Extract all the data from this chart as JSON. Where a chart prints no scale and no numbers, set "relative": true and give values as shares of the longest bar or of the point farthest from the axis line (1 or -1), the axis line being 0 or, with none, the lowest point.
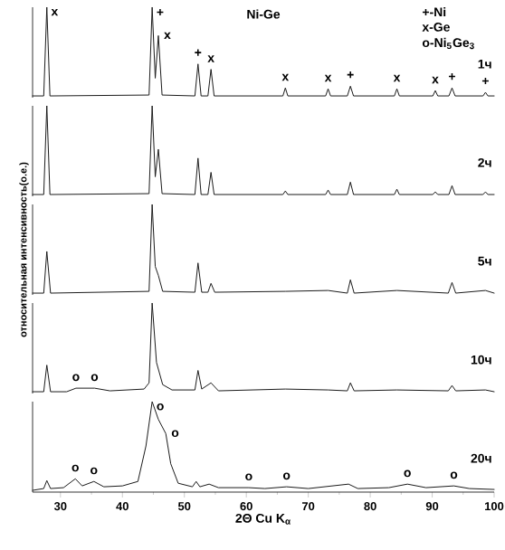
{
  "chart_data": [
    {
      "type": "line",
      "relative": true,
      "title": "Ni-Ge",
      "xlim": [
        25.5,
        100
      ],
      "tick_labels": false,
      "series": [
        {
          "name": "1ч",
          "color": "#1a1a1a",
          "x": [
            25.5,
            27.3,
            27.8,
            28.3,
            44.3,
            44.8,
            45.3,
            45.8,
            46.4,
            51.7,
            52.2,
            52.7,
            53.8,
            54.3,
            54.8,
            65.9,
            66.3,
            66.7,
            72.8,
            73.2,
            73.6,
            76.3,
            76.8,
            77.3,
            83.9,
            84.3,
            84.7,
            90.1,
            90.5,
            90.9,
            92.7,
            93.2,
            93.7,
            98.2,
            98.6,
            99.0,
            100
          ],
          "values": [
            0,
            0,
            1.0,
            0,
            0.01,
            1.0,
            0.2,
            0.68,
            0.01,
            0,
            0.36,
            0,
            0,
            0.3,
            0,
            0,
            0.09,
            0,
            0,
            0.08,
            0,
            0,
            0.11,
            0,
            0,
            0.08,
            0,
            0,
            0.06,
            0,
            0,
            0.09,
            0,
            0,
            0.04,
            0,
            0
          ]
        }
      ],
      "annotations": [
        "+-Ni",
        "x-Ge",
        "o-Ni$_{5}$Ge$_{3}$",
        {
          "text": "x",
          "x": 27.8,
          "y": 1.0
        },
        {
          "text": "+",
          "x": 44.8,
          "y": 1.0
        },
        {
          "text": "x",
          "x": 45.8,
          "y": 0.68
        },
        {
          "text": "+",
          "x": 52.2,
          "y": 0.36
        },
        {
          "text": "x",
          "x": 54.3,
          "y": 0.3
        },
        {
          "text": "x",
          "x": 66.3,
          "y": 0.09
        },
        {
          "text": "x",
          "x": 73.2,
          "y": 0.08
        },
        {
          "text": "+",
          "x": 76.8,
          "y": 0.11
        },
        {
          "text": "x",
          "x": 84.3,
          "y": 0.08
        },
        {
          "text": "x",
          "x": 90.5,
          "y": 0.06
        },
        {
          "text": "+",
          "x": 93.2,
          "y": 0.09
        },
        {
          "text": "+",
          "x": 98.6,
          "y": 0.04
        }
      ]
    },
    {
      "type": "line",
      "relative": true,
      "xlim": [
        25.5,
        100
      ],
      "tick_labels": false,
      "series": [
        {
          "name": "2ч",
          "color": "#1a1a1a",
          "x": [
            25.5,
            27.3,
            27.8,
            28.3,
            44.3,
            44.8,
            45.3,
            45.8,
            46.4,
            51.7,
            52.2,
            52.7,
            53.8,
            54.3,
            54.8,
            65.9,
            66.3,
            66.7,
            72.8,
            73.2,
            73.6,
            76.3,
            76.8,
            77.3,
            83.9,
            84.3,
            84.7,
            90.1,
            90.5,
            90.9,
            92.7,
            93.2,
            93.7,
            98.2,
            98.6,
            99.0,
            100
          ],
          "values": [
            0,
            0,
            1.0,
            0,
            0.01,
            1.0,
            0.2,
            0.51,
            0.01,
            0,
            0.41,
            0,
            0,
            0.25,
            0,
            0,
            0.04,
            0,
            0,
            0.05,
            0,
            0,
            0.14,
            0,
            0,
            0.06,
            0,
            0,
            0.03,
            0,
            0,
            0.1,
            0,
            0,
            0.03,
            0,
            0
          ]
        }
      ]
    },
    {
      "type": "line",
      "relative": true,
      "xlim": [
        25.5,
        100
      ],
      "tick_labels": false,
      "ylabel": "относительная интенсивность(о.е.)",
      "series": [
        {
          "name": "5ч",
          "color": "#1a1a1a",
          "x": [
            25.5,
            27.3,
            27.8,
            28.4,
            44.3,
            44.8,
            45.3,
            45.8,
            46.5,
            51.7,
            52.2,
            52.8,
            53.8,
            54.3,
            54.9,
            66.3,
            73.2,
            76.3,
            76.8,
            77.4,
            84.3,
            92.6,
            93.2,
            93.8,
            98.6,
            100
          ],
          "values": [
            0,
            0,
            0.47,
            0,
            0.02,
            1.0,
            0.3,
            0.2,
            0.02,
            0.01,
            0.34,
            0.01,
            0.01,
            0.11,
            0.01,
            0.02,
            0.03,
            0,
            0.15,
            0,
            0.03,
            0,
            0.12,
            0,
            0.03,
            0
          ]
        }
      ]
    },
    {
      "type": "line",
      "relative": true,
      "xlim": [
        25.5,
        100
      ],
      "tick_labels": false,
      "series": [
        {
          "name": "10ч",
          "color": "#1a1a1a",
          "x": [
            25.5,
            27.3,
            27.8,
            28.4,
            31,
            32.5,
            35.5,
            38,
            43.5,
            44.3,
            44.8,
            45.5,
            46.5,
            48,
            51.7,
            52.2,
            52.8,
            54.3,
            55.5,
            66.3,
            73.2,
            76.3,
            76.8,
            77.4,
            84.3,
            92.6,
            93.2,
            93.8,
            98.6,
            100
          ],
          "values": [
            0,
            0,
            0.3,
            0,
            0,
            0.04,
            0.04,
            0.01,
            0.03,
            0.1,
            1.0,
            0.33,
            0.08,
            0.02,
            0.02,
            0.24,
            0.03,
            0.1,
            0.01,
            0.03,
            0.02,
            0.01,
            0.1,
            0.01,
            0.02,
            0.01,
            0.07,
            0.01,
            0.02,
            0
          ]
        }
      ],
      "annotations": [
        {
          "text": "o",
          "x": 32.5,
          "y": 0.04
        },
        {
          "text": "o",
          "x": 35.5,
          "y": 0.04
        }
      ]
    },
    {
      "type": "line",
      "relative": true,
      "xlim": [
        25.5,
        100
      ],
      "xticks": [
        30,
        40,
        50,
        60,
        70,
        80,
        90,
        100
      ],
      "tick_labels": "x",
      "xlabel": "2Θ Cu K$_{α}$",
      "series": [
        {
          "name": "20ч",
          "color": "#1a1a1a",
          "x": [
            25.5,
            27.3,
            27.8,
            28.4,
            30.5,
            32.4,
            33.5,
            35.4,
            37,
            40,
            42.5,
            43.8,
            44.8,
            45.8,
            47,
            47.8,
            49,
            51.3,
            51.9,
            52.5,
            54,
            55.5,
            60.4,
            63,
            66.5,
            70,
            76.5,
            78,
            83,
            86,
            89,
            93.5,
            96,
            100
          ],
          "values": [
            0,
            0.02,
            0.11,
            0.02,
            0.03,
            0.13,
            0.05,
            0.1,
            0.04,
            0.05,
            0.1,
            0.5,
            1.0,
            0.8,
            0.64,
            0.3,
            0.08,
            0.04,
            0.1,
            0.04,
            0.07,
            0.03,
            0.03,
            0.02,
            0.04,
            0.02,
            0.07,
            0.02,
            0.03,
            0.07,
            0.03,
            0.05,
            0.02,
            0.01
          ]
        }
      ],
      "annotations": [
        {
          "text": "o",
          "x": 32.4,
          "y": 0.13
        },
        {
          "text": "o",
          "x": 35.4,
          "y": 0.1
        },
        {
          "text": "o",
          "x": 44.8,
          "y": 1.0
        },
        {
          "text": "o",
          "x": 47,
          "y": 0.64
        },
        {
          "text": "o",
          "x": 60.4,
          "y": 0.03
        },
        {
          "text": "o",
          "x": 66.5,
          "y": 0.04
        },
        {
          "text": "o",
          "x": 86,
          "y": 0.07
        },
        {
          "text": "o",
          "x": 93.5,
          "y": 0.05
        }
      ]
    }
  ]
}
